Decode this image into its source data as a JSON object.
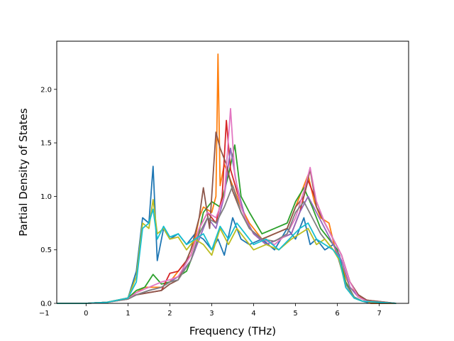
{
  "chart_data": {
    "type": "line",
    "title": "",
    "xlabel": "Frequency (THz)",
    "ylabel": "Partial Density of States",
    "xlim": [
      -0.7,
      7.7
    ],
    "ylim": [
      0.0,
      2.45
    ],
    "xticks": [
      -1,
      0,
      1,
      2,
      3,
      4,
      5,
      6,
      7
    ],
    "xtick_labels": [
      "−1",
      "0",
      "1",
      "2",
      "3",
      "4",
      "5",
      "6",
      "7"
    ],
    "yticks": [
      0.0,
      0.5,
      1.0,
      1.5,
      2.0
    ],
    "ytick_labels": [
      "0.0",
      "0.5",
      "1.0",
      "1.5",
      "2.0"
    ],
    "grid": false,
    "legend": "none",
    "series": [
      {
        "color": "#1f77b4",
        "x": [
          -0.7,
          0.0,
          0.5,
          1.0,
          1.2,
          1.35,
          1.5,
          1.6,
          1.7,
          1.85,
          2.0,
          2.2,
          2.4,
          2.6,
          2.8,
          3.0,
          3.15,
          3.3,
          3.5,
          3.7,
          3.9,
          4.2,
          4.5,
          4.8,
          5.0,
          5.2,
          5.35,
          5.5,
          5.7,
          5.9,
          6.05,
          6.2,
          6.4,
          6.6,
          6.8,
          7.4
        ],
        "y": [
          0.0,
          0.0,
          0.01,
          0.05,
          0.3,
          0.8,
          0.75,
          1.28,
          0.4,
          0.7,
          0.6,
          0.65,
          0.55,
          0.65,
          0.6,
          0.5,
          0.6,
          0.45,
          0.8,
          0.6,
          0.55,
          0.6,
          0.5,
          0.7,
          0.6,
          0.8,
          0.55,
          0.6,
          0.5,
          0.55,
          0.45,
          0.15,
          0.05,
          0.02,
          0.0,
          0.0
        ]
      },
      {
        "color": "#ff7f0e",
        "x": [
          -0.7,
          0.0,
          0.5,
          1.0,
          1.2,
          1.4,
          1.6,
          1.8,
          2.0,
          2.2,
          2.4,
          2.6,
          2.7,
          2.8,
          3.0,
          3.1,
          3.15,
          3.2,
          3.3,
          3.5,
          3.7,
          3.9,
          4.2,
          4.5,
          4.8,
          5.0,
          5.2,
          5.3,
          5.45,
          5.6,
          5.8,
          5.95,
          6.1,
          6.3,
          6.5,
          6.65,
          6.8,
          7.4
        ],
        "y": [
          0.0,
          0.0,
          0.01,
          0.05,
          0.1,
          0.15,
          0.15,
          0.15,
          0.2,
          0.3,
          0.4,
          0.6,
          0.8,
          0.9,
          0.85,
          1.0,
          2.33,
          1.1,
          1.3,
          1.1,
          0.9,
          0.75,
          0.6,
          0.65,
          0.7,
          0.9,
          1.1,
          1.2,
          0.95,
          0.8,
          0.75,
          0.5,
          0.35,
          0.15,
          0.08,
          0.03,
          0.0,
          0.0
        ]
      },
      {
        "color": "#2ca02c",
        "x": [
          -0.7,
          0.0,
          0.5,
          1.0,
          1.2,
          1.4,
          1.6,
          1.8,
          2.0,
          2.2,
          2.4,
          2.6,
          2.8,
          3.0,
          3.2,
          3.4,
          3.55,
          3.7,
          3.9,
          4.2,
          4.5,
          4.8,
          5.0,
          5.2,
          5.4,
          5.6,
          5.8,
          6.0,
          6.2,
          6.4,
          6.6,
          7.4
        ],
        "y": [
          0.0,
          0.0,
          0.01,
          0.05,
          0.12,
          0.15,
          0.27,
          0.18,
          0.2,
          0.25,
          0.3,
          0.5,
          0.85,
          0.95,
          0.9,
          1.2,
          1.48,
          1.0,
          0.85,
          0.65,
          0.7,
          0.75,
          0.95,
          1.08,
          0.9,
          0.7,
          0.6,
          0.5,
          0.2,
          0.06,
          0.02,
          0.0
        ]
      },
      {
        "color": "#d62728",
        "x": [
          -0.7,
          0.0,
          0.5,
          1.0,
          1.2,
          1.5,
          1.8,
          2.0,
          2.2,
          2.5,
          2.7,
          2.9,
          3.1,
          3.25,
          3.35,
          3.45,
          3.6,
          3.8,
          4.0,
          4.3,
          4.6,
          4.9,
          5.1,
          5.3,
          5.5,
          5.7,
          5.9,
          6.1,
          6.3,
          6.5,
          6.7,
          7.4
        ],
        "y": [
          0.0,
          0.0,
          0.01,
          0.05,
          0.08,
          0.1,
          0.12,
          0.28,
          0.3,
          0.45,
          0.7,
          0.85,
          0.75,
          1.0,
          1.71,
          1.25,
          1.05,
          0.8,
          0.65,
          0.55,
          0.6,
          0.65,
          0.85,
          1.15,
          0.95,
          0.75,
          0.6,
          0.45,
          0.2,
          0.08,
          0.03,
          0.0
        ]
      },
      {
        "color": "#9467bd",
        "x": [
          -0.7,
          0.0,
          0.5,
          1.0,
          1.2,
          1.5,
          1.8,
          2.0,
          2.2,
          2.5,
          2.7,
          2.9,
          3.1,
          3.3,
          3.45,
          3.6,
          3.8,
          4.0,
          4.3,
          4.6,
          4.9,
          5.1,
          5.3,
          5.5,
          5.7,
          5.9,
          6.1,
          6.3,
          6.5,
          6.7,
          7.4
        ],
        "y": [
          0.0,
          0.0,
          0.01,
          0.04,
          0.08,
          0.12,
          0.15,
          0.2,
          0.25,
          0.4,
          0.6,
          0.8,
          0.7,
          1.0,
          1.45,
          1.1,
          0.8,
          0.65,
          0.55,
          0.6,
          0.65,
          0.85,
          1.0,
          0.85,
          0.7,
          0.55,
          0.4,
          0.15,
          0.06,
          0.02,
          0.0
        ]
      },
      {
        "color": "#8c564b",
        "x": [
          -0.7,
          0.0,
          0.5,
          1.0,
          1.2,
          1.5,
          1.8,
          2.0,
          2.2,
          2.5,
          2.7,
          2.8,
          2.95,
          3.1,
          3.2,
          3.35,
          3.5,
          3.7,
          3.9,
          4.2,
          4.5,
          4.8,
          5.0,
          5.2,
          5.35,
          5.5,
          5.7,
          5.9,
          6.1,
          6.3,
          6.5,
          6.7,
          7.4
        ],
        "y": [
          0.0,
          0.0,
          0.01,
          0.04,
          0.08,
          0.1,
          0.12,
          0.18,
          0.22,
          0.5,
          0.8,
          1.08,
          0.7,
          1.6,
          1.45,
          1.3,
          1.05,
          0.85,
          0.7,
          0.6,
          0.65,
          0.7,
          0.9,
          1.0,
          1.25,
          0.9,
          0.75,
          0.6,
          0.45,
          0.2,
          0.08,
          0.03,
          0.0
        ]
      },
      {
        "color": "#e377c2",
        "x": [
          -0.7,
          0.0,
          0.5,
          1.0,
          1.2,
          1.5,
          1.8,
          2.0,
          2.2,
          2.5,
          2.7,
          2.9,
          3.1,
          3.3,
          3.45,
          3.55,
          3.7,
          3.9,
          4.2,
          4.5,
          4.8,
          5.0,
          5.2,
          5.35,
          5.5,
          5.7,
          5.9,
          6.1,
          6.3,
          6.5,
          6.7,
          7.4
        ],
        "y": [
          0.0,
          0.0,
          0.01,
          0.04,
          0.1,
          0.15,
          0.2,
          0.22,
          0.25,
          0.45,
          0.7,
          0.85,
          0.8,
          1.0,
          1.82,
          1.2,
          0.9,
          0.7,
          0.6,
          0.55,
          0.65,
          0.8,
          1.05,
          1.27,
          0.95,
          0.75,
          0.6,
          0.45,
          0.2,
          0.06,
          0.02,
          0.0
        ]
      },
      {
        "color": "#7f7f7f",
        "x": [
          -0.7,
          0.0,
          0.5,
          1.0,
          1.2,
          1.5,
          1.8,
          2.0,
          2.2,
          2.5,
          2.7,
          2.9,
          3.1,
          3.3,
          3.5,
          3.7,
          3.9,
          4.2,
          4.5,
          4.8,
          5.0,
          5.2,
          5.4,
          5.6,
          5.8,
          6.0,
          6.2,
          6.4,
          6.6,
          7.4
        ],
        "y": [
          0.0,
          0.0,
          0.01,
          0.04,
          0.08,
          0.12,
          0.15,
          0.2,
          0.22,
          0.4,
          0.65,
          0.8,
          0.75,
          0.9,
          1.1,
          0.85,
          0.7,
          0.6,
          0.58,
          0.65,
          0.85,
          0.95,
          0.8,
          0.65,
          0.55,
          0.45,
          0.18,
          0.06,
          0.02,
          0.0
        ]
      },
      {
        "color": "#bcbd22",
        "x": [
          -0.7,
          0.0,
          0.5,
          1.0,
          1.2,
          1.35,
          1.5,
          1.6,
          1.7,
          1.85,
          2.0,
          2.2,
          2.4,
          2.6,
          2.8,
          3.0,
          3.2,
          3.4,
          3.6,
          3.8,
          4.0,
          4.3,
          4.6,
          4.9,
          5.1,
          5.3,
          5.5,
          5.7,
          5.9,
          6.05,
          6.2,
          6.4,
          6.6,
          7.4
        ],
        "y": [
          0.0,
          0.0,
          0.01,
          0.05,
          0.25,
          0.75,
          0.7,
          0.97,
          0.65,
          0.7,
          0.6,
          0.62,
          0.5,
          0.6,
          0.55,
          0.45,
          0.7,
          0.55,
          0.7,
          0.6,
          0.5,
          0.55,
          0.5,
          0.6,
          0.65,
          0.7,
          0.55,
          0.6,
          0.5,
          0.4,
          0.15,
          0.05,
          0.02,
          0.0
        ]
      },
      {
        "color": "#17becf",
        "x": [
          -0.7,
          0.0,
          0.5,
          1.0,
          1.2,
          1.35,
          1.5,
          1.6,
          1.7,
          1.85,
          2.0,
          2.2,
          2.4,
          2.6,
          2.8,
          3.0,
          3.2,
          3.4,
          3.6,
          3.8,
          4.0,
          4.3,
          4.6,
          4.9,
          5.1,
          5.3,
          5.5,
          5.7,
          5.9,
          6.05,
          6.2,
          6.4,
          6.6,
          7.4
        ],
        "y": [
          0.0,
          0.0,
          0.01,
          0.05,
          0.2,
          0.7,
          0.75,
          0.88,
          0.6,
          0.72,
          0.62,
          0.65,
          0.55,
          0.6,
          0.65,
          0.5,
          0.72,
          0.6,
          0.75,
          0.65,
          0.55,
          0.6,
          0.5,
          0.62,
          0.7,
          0.75,
          0.6,
          0.55,
          0.5,
          0.42,
          0.15,
          0.05,
          0.02,
          0.0
        ]
      }
    ]
  }
}
